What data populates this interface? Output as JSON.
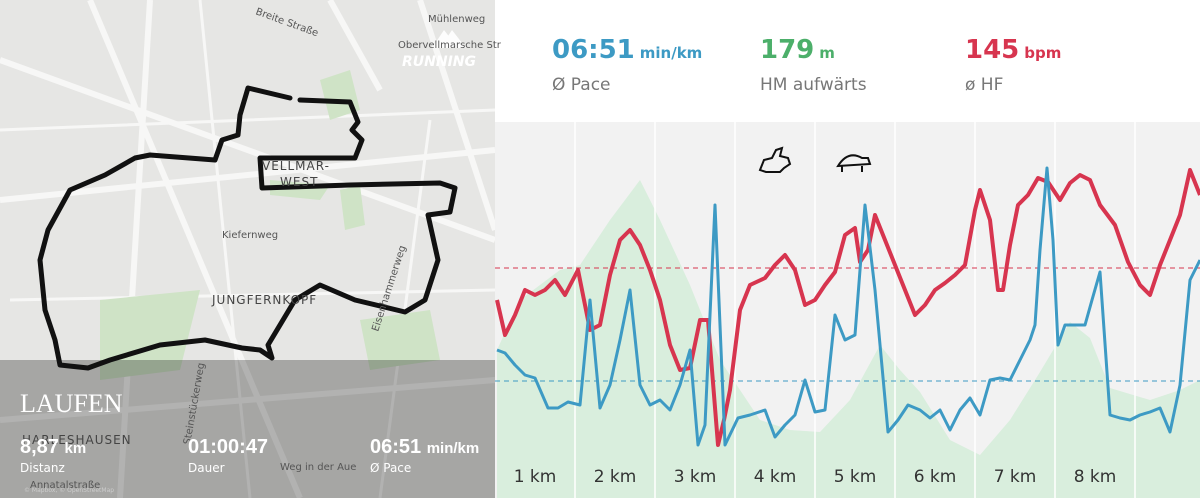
{
  "map": {
    "badge": "RUNNING",
    "streets": [
      "Mühlenweg",
      "Obervellmarsche Str",
      "Breite Straße",
      "Kiefernweg",
      "Eisenhammerweg",
      "Steinstückerweg",
      "Annatalstraße",
      "Weg in der Aue"
    ],
    "areas": [
      "VELLMAR-",
      "WEST",
      "JUNGFERNKOPF",
      "HARLESHAUSEN"
    ],
    "activity": "LAUFEN",
    "distance": {
      "value": "8,87",
      "unit": "km",
      "label": "Distanz"
    },
    "duration": {
      "value": "01:00:47",
      "label": "Dauer"
    },
    "pace": {
      "value": "06:51",
      "unit": "min/km",
      "label": "Ø Pace"
    },
    "attribution": "© Mapbox, © OpenStreetMap"
  },
  "stats": [
    {
      "value": "06:51",
      "unit": "min/km",
      "label": "Ø Pace",
      "color": "#3d9ac4"
    },
    {
      "value": "179",
      "unit": "m",
      "label": "HM aufwärts",
      "color": "#4caf6a"
    },
    {
      "value": "145",
      "unit": "bpm",
      "label": "ø HF",
      "color": "#d7354f"
    }
  ],
  "chart": {
    "km_labels": [
      "1 km",
      "2 km",
      "3 km",
      "4 km",
      "5 km",
      "6 km",
      "7 km",
      "8 km"
    ]
  }
}
